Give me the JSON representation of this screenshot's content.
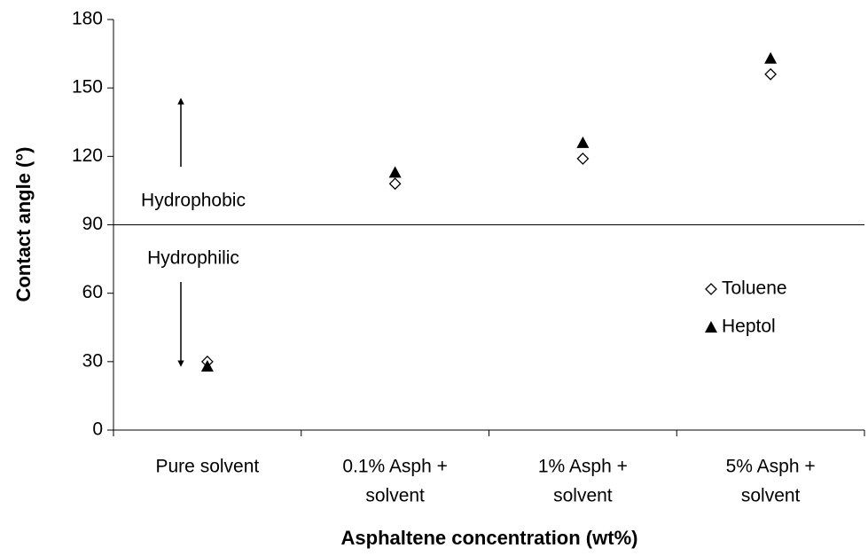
{
  "chart_data": {
    "type": "scatter",
    "x_label": "Asphaltene concentration (wt%)",
    "y_label": "Contact angle (°)",
    "categories": [
      [
        "Pure solvent"
      ],
      [
        "0.1% Asph +",
        "solvent"
      ],
      [
        "1% Asph +",
        "solvent"
      ],
      [
        "5% Asph +",
        "solvent"
      ]
    ],
    "series": [
      {
        "name": "Toluene",
        "color": "#000000",
        "marker": "diamond-open",
        "values": [
          30,
          108,
          119,
          156
        ]
      },
      {
        "name": "Heptol",
        "color": "#000000",
        "marker": "triangle",
        "values": [
          28,
          113,
          126,
          163
        ]
      }
    ],
    "ylim": [
      0,
      180
    ],
    "yticks": [
      0,
      30,
      60,
      90,
      120,
      150,
      180
    ],
    "reference_line": 90,
    "annotations": [
      "Hydrophobic",
      "Hydrophilic"
    ],
    "grid": false,
    "legend": "right"
  }
}
